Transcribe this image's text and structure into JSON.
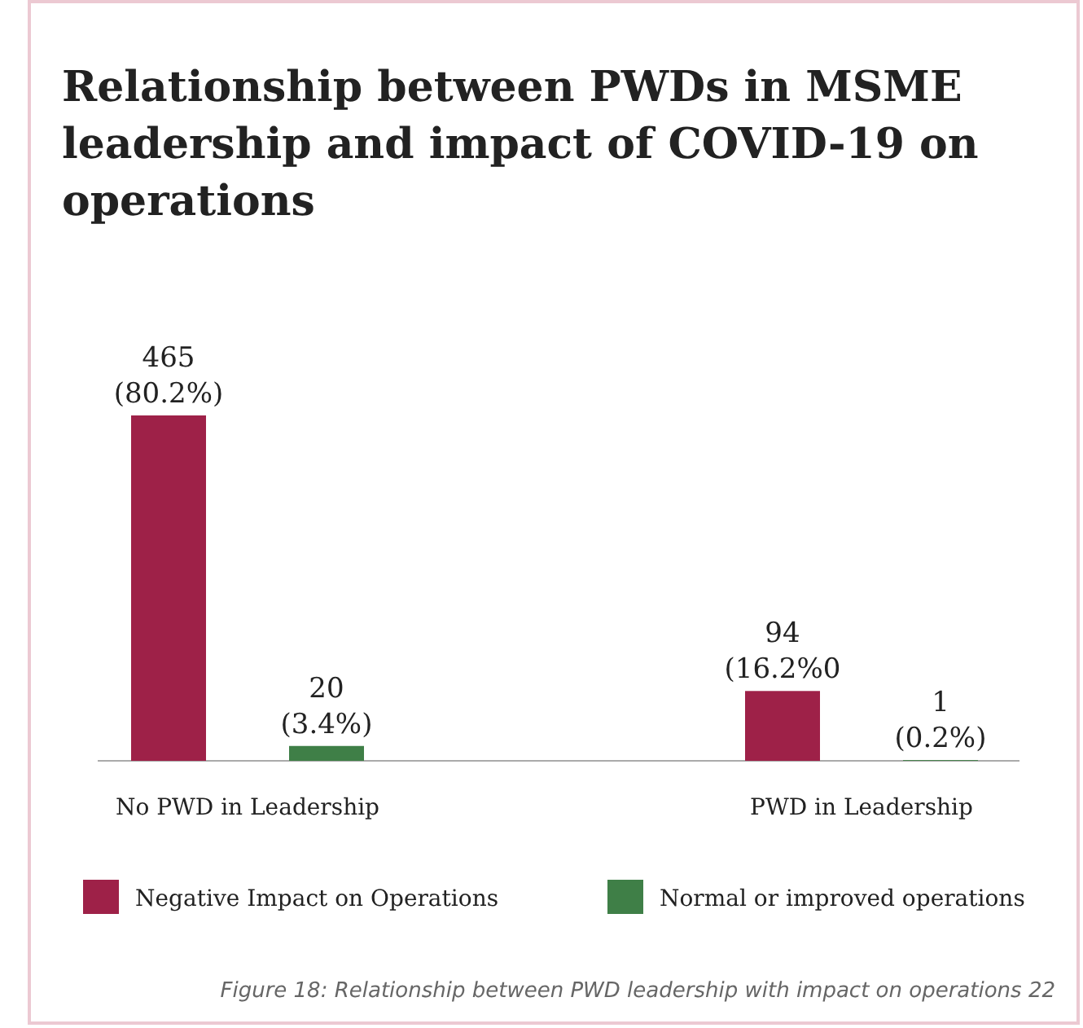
{
  "chart_data": {
    "type": "bar",
    "title": "Relationship between PWDs in MSME leadership and impact of COVID-19 on operations",
    "categories": [
      "No PWD in Leadership",
      "PWD in Leadership"
    ],
    "series": [
      {
        "name": "Negative Impact on Operations",
        "color": "#9e2148",
        "values": [
          465,
          94
        ],
        "value_labels": [
          "465\n(80.2%)",
          "94\n(16.2%0"
        ]
      },
      {
        "name": "Normal or improved operations",
        "color": "#3f7f47",
        "values": [
          20,
          1
        ],
        "value_labels": [
          "20\n(3.4%)",
          "1\n(0.2%)"
        ]
      }
    ],
    "legend": "bottom",
    "annotations": [
      "Figure 18: Relationship between PWD leadership with impact on operations 22"
    ]
  }
}
